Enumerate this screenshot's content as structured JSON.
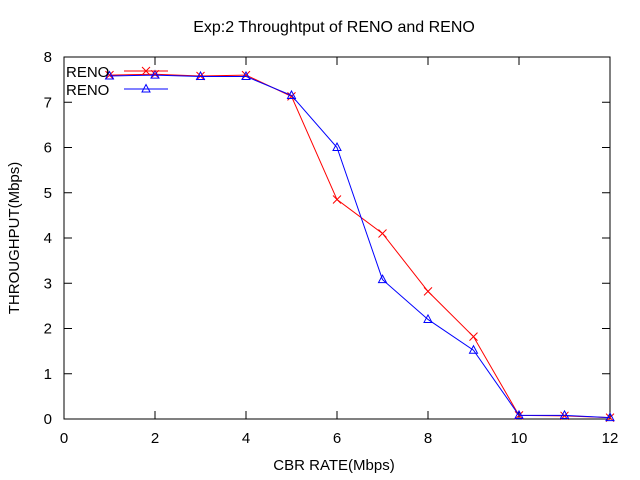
{
  "chart_data": {
    "type": "line",
    "title": "Exp:2 Throughtput of RENO and RENO",
    "xlabel": "CBR RATE(Mbps)",
    "ylabel": "THROUGHPUT(Mbps)",
    "xlim": [
      0,
      12
    ],
    "ylim": [
      0,
      8
    ],
    "xticks": [
      0,
      2,
      4,
      6,
      8,
      10,
      12
    ],
    "yticks": [
      0,
      1,
      2,
      3,
      4,
      5,
      6,
      7,
      8
    ],
    "grid": false,
    "legend_position": "top-left",
    "series": [
      {
        "name": "RENO",
        "color": "#ff0000",
        "marker": "cross",
        "x": [
          1,
          2,
          3,
          4,
          5,
          6,
          7,
          8,
          9,
          10,
          11,
          12
        ],
        "y": [
          7.6,
          7.62,
          7.58,
          7.6,
          7.13,
          4.85,
          4.1,
          2.82,
          1.82,
          0.08,
          0.07,
          0.03
        ]
      },
      {
        "name": "RENO",
        "color": "#0000ff",
        "marker": "triangle",
        "x": [
          1,
          2,
          3,
          4,
          5,
          6,
          7,
          8,
          9,
          10,
          11,
          12
        ],
        "y": [
          7.58,
          7.6,
          7.57,
          7.57,
          7.15,
          6.0,
          3.08,
          2.2,
          1.52,
          0.08,
          0.08,
          0.03
        ]
      }
    ]
  }
}
